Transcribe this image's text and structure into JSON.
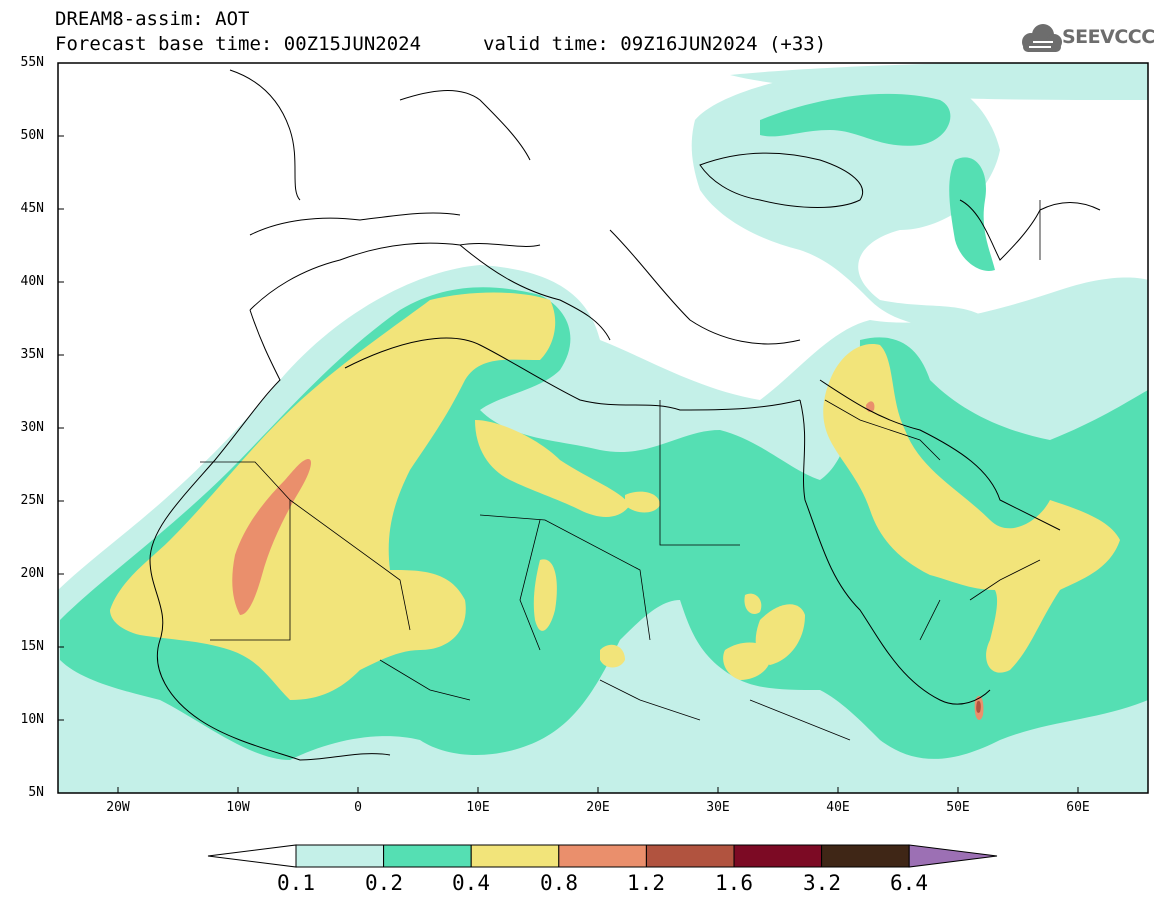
{
  "header": {
    "title": "DREAM8-assim: AOT",
    "forecast_base": "Forecast base time: 00Z15JUN2024",
    "valid_time": "valid time: 09Z16JUN2024 (+33)",
    "logo_text": "SEEVCCC"
  },
  "map": {
    "lat_labels": [
      "55N",
      "50N",
      "45N",
      "40N",
      "35N",
      "30N",
      "25N",
      "20N",
      "15N",
      "10N",
      "5N"
    ],
    "lon_labels": [
      "20W",
      "10W",
      "0",
      "10E",
      "20E",
      "30E",
      "40E",
      "50E",
      "60E"
    ]
  },
  "colorbar": {
    "labels": [
      "0.1",
      "0.2",
      "0.4",
      "0.8",
      "1.2",
      "1.6",
      "3.2",
      "6.4"
    ],
    "colors": {
      "0.1-0.2": "#c4f0e8",
      "0.2-0.4": "#55dfb3",
      "0.4-0.8": "#f2e47a",
      "0.8-1.2": "#ea8f6c",
      "1.2-1.6": "#b1533f",
      "1.6-3.2": "#7c0a24",
      "3.2-6.4": "#3f2616",
      "above-6.4": "#9c70b4",
      "below-0.1": "#ffffff"
    }
  }
}
